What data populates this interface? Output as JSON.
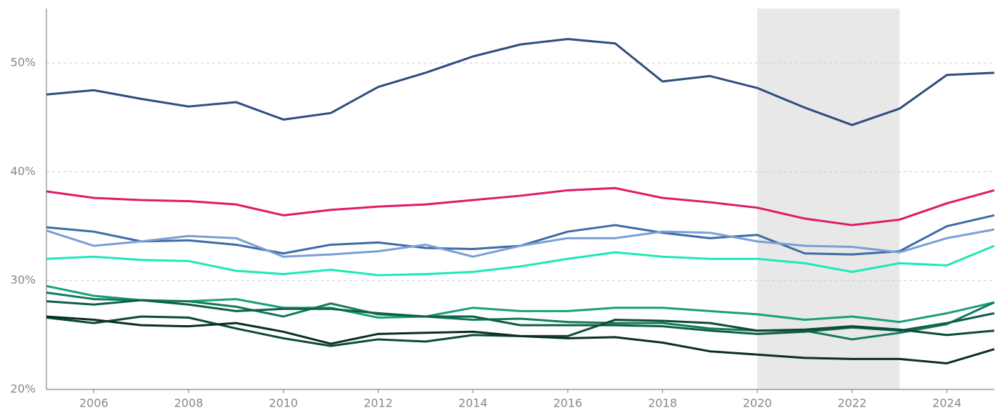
{
  "chart_data": {
    "type": "line",
    "x": [
      2005,
      2006,
      2007,
      2008,
      2009,
      2010,
      2011,
      2012,
      2013,
      2014,
      2015,
      2016,
      2017,
      2018,
      2019,
      2020,
      2021,
      2022,
      2023,
      2024,
      2025
    ],
    "xlim": [
      2005,
      2025
    ],
    "xticks": [
      2006,
      2008,
      2010,
      2012,
      2014,
      2016,
      2018,
      2020,
      2022,
      2024
    ],
    "ylim": [
      20,
      55
    ],
    "yticks": [
      {
        "value": 20,
        "label": "20%"
      },
      {
        "value": 30,
        "label": "30%"
      },
      {
        "value": 40,
        "label": "40%"
      },
      {
        "value": 50,
        "label": "50%"
      }
    ],
    "grid": true,
    "highlight_range": [
      2020,
      2023
    ],
    "highlight_color": "#e8e8e8",
    "series": [
      {
        "color": "#2e4e7e",
        "values": [
          47.1,
          47.5,
          46.7,
          46.0,
          46.4,
          44.8,
          45.4,
          47.8,
          49.1,
          50.6,
          51.7,
          52.2,
          51.8,
          48.3,
          48.8,
          47.7,
          45.9,
          44.3,
          45.8,
          48.9,
          49.1
        ]
      },
      {
        "color": "#e0196b",
        "values": [
          38.2,
          37.6,
          37.4,
          37.3,
          37.0,
          36.0,
          36.5,
          36.8,
          37.0,
          37.4,
          37.8,
          38.3,
          38.5,
          37.6,
          37.2,
          36.7,
          35.7,
          35.1,
          35.6,
          37.1,
          38.3
        ]
      },
      {
        "color": "#3d6aa8",
        "values": [
          34.9,
          34.5,
          33.6,
          33.7,
          33.3,
          32.5,
          33.3,
          33.5,
          33.0,
          32.9,
          33.2,
          34.5,
          35.1,
          34.4,
          33.9,
          34.2,
          32.5,
          32.4,
          32.7,
          35.0,
          36.0
        ]
      },
      {
        "color": "#7a9fd4",
        "values": [
          34.6,
          33.2,
          33.6,
          34.1,
          33.9,
          32.2,
          32.4,
          32.7,
          33.3,
          32.2,
          33.2,
          33.9,
          33.9,
          34.5,
          34.4,
          33.6,
          33.2,
          33.1,
          32.6,
          33.9,
          34.7
        ]
      },
      {
        "color": "#1de9b6",
        "values": [
          32.0,
          32.2,
          31.9,
          31.8,
          30.9,
          30.6,
          31.0,
          30.5,
          30.6,
          30.8,
          31.3,
          32.0,
          32.6,
          32.2,
          32.0,
          32.0,
          31.6,
          30.8,
          31.6,
          31.4,
          33.2
        ]
      },
      {
        "color": "#1a9e7a",
        "values": [
          29.5,
          28.6,
          28.2,
          28.1,
          28.3,
          27.5,
          27.5,
          26.6,
          26.7,
          27.5,
          27.2,
          27.2,
          27.5,
          27.5,
          27.2,
          26.9,
          26.4,
          26.7,
          26.2,
          27.0,
          28.0
        ]
      },
      {
        "color": "#127a5e",
        "values": [
          28.9,
          28.3,
          28.2,
          28.1,
          27.6,
          26.7,
          27.9,
          26.9,
          26.7,
          26.4,
          26.5,
          26.2,
          26.1,
          26.1,
          25.6,
          25.4,
          25.4,
          24.6,
          25.2,
          26.0,
          28.0
        ]
      },
      {
        "color": "#0f5e47",
        "values": [
          28.1,
          27.8,
          28.2,
          27.8,
          27.2,
          27.4,
          27.4,
          27.0,
          26.7,
          26.7,
          25.9,
          25.9,
          25.9,
          25.8,
          25.4,
          25.1,
          25.3,
          25.7,
          25.4,
          26.1,
          27.0
        ]
      },
      {
        "color": "#0c4a38",
        "values": [
          26.6,
          26.1,
          26.7,
          26.6,
          25.6,
          24.7,
          24.0,
          24.6,
          24.4,
          25.0,
          24.9,
          24.9,
          26.4,
          26.3,
          26.1,
          25.4,
          25.5,
          25.8,
          25.5,
          25.0,
          25.4
        ]
      },
      {
        "color": "#0a2e22",
        "values": [
          26.7,
          26.4,
          25.9,
          25.8,
          26.1,
          25.3,
          24.2,
          25.1,
          25.2,
          25.3,
          24.9,
          24.7,
          24.8,
          24.3,
          23.5,
          23.2,
          22.9,
          22.8,
          22.8,
          22.4,
          23.7
        ]
      }
    ]
  }
}
